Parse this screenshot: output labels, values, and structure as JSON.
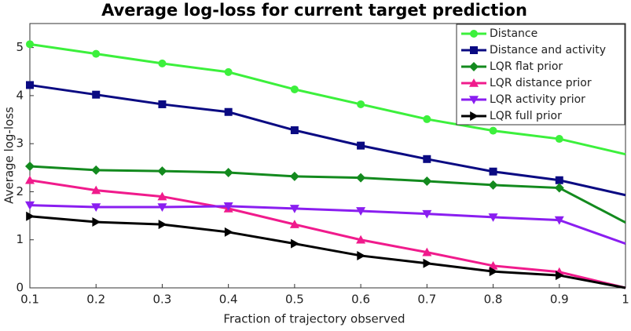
{
  "chart_data": {
    "type": "line",
    "title": "Average log-loss for current target prediction",
    "x_label": "Fraction of trajectory observed",
    "y_label": "Average log-loss",
    "x": [
      0.1,
      0.2,
      0.3,
      0.4,
      0.5,
      0.6,
      0.7,
      0.8,
      0.9,
      1
    ],
    "xlim": [
      0.1,
      1
    ],
    "xticks": [
      0.1,
      0.2,
      0.3,
      0.4,
      0.5,
      0.6,
      0.7,
      0.8,
      0.9,
      1
    ],
    "ylim": [
      0,
      5.5
    ],
    "yticks": [
      0,
      1,
      2,
      3,
      4,
      5
    ],
    "legend": "top-right",
    "series": [
      {
        "name": "Distance",
        "color": "#3cf03c",
        "marker": "circle",
        "values": [
          5.07,
          4.87,
          4.67,
          4.49,
          4.13,
          3.82,
          3.51,
          3.27,
          3.1,
          2.78
        ]
      },
      {
        "name": "Distance and activity",
        "color": "#0a0a82",
        "marker": "square",
        "values": [
          4.22,
          4.02,
          3.82,
          3.66,
          3.28,
          2.96,
          2.68,
          2.42,
          2.24,
          1.93
        ]
      },
      {
        "name": "LQR flat prior",
        "color": "#138a1e",
        "marker": "diamond",
        "values": [
          2.53,
          2.45,
          2.43,
          2.4,
          2.32,
          2.29,
          2.22,
          2.14,
          2.08,
          1.36
        ]
      },
      {
        "name": "LQR distance prior",
        "color": "#f01b8c",
        "marker": "triangle-up",
        "values": [
          2.24,
          2.03,
          1.9,
          1.65,
          1.32,
          1.0,
          0.74,
          0.46,
          0.33,
          0
        ]
      },
      {
        "name": "LQR activity prior",
        "color": "#8a1ef0",
        "marker": "triangle-down",
        "values": [
          1.72,
          1.68,
          1.68,
          1.7,
          1.65,
          1.6,
          1.54,
          1.47,
          1.41,
          0.92
        ]
      },
      {
        "name": "LQR full prior",
        "color": "#000000",
        "marker": "triangle-right",
        "values": [
          1.49,
          1.37,
          1.32,
          1.16,
          0.92,
          0.67,
          0.51,
          0.34,
          0.26,
          0
        ]
      }
    ]
  }
}
